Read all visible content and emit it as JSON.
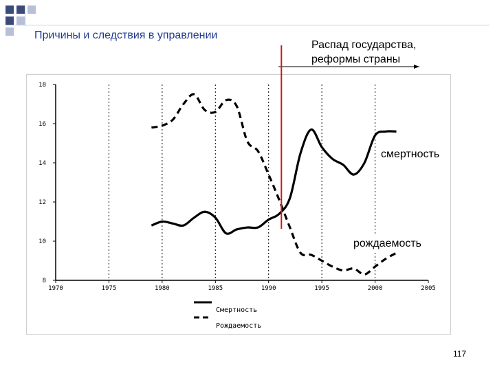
{
  "slide": {
    "title": "Причины и следствия в управлении",
    "annotation_line1": "Распад государства,",
    "annotation_line2": "реформы страны",
    "page_number": "117"
  },
  "chart_data": {
    "type": "line",
    "xlim": [
      1970,
      2005
    ],
    "ylim": [
      8,
      18
    ],
    "x_ticks": [
      1970,
      1975,
      1980,
      1985,
      1990,
      1995,
      2000,
      2005
    ],
    "y_ticks": [
      8,
      10,
      12,
      14,
      16,
      18
    ],
    "vertical_dotted_lines": [
      1975,
      1980,
      1985,
      1990,
      1995,
      2000
    ],
    "marker_year": 1991.2,
    "series": [
      {
        "name": "Смертность",
        "inline_label": "смертность",
        "style": "solid",
        "x": [
          1979,
          1980,
          1981,
          1982,
          1983,
          1984,
          1985,
          1986,
          1987,
          1988,
          1989,
          1990,
          1991,
          1992,
          1993,
          1994,
          1995,
          1996,
          1997,
          1998,
          1999,
          2000,
          2001,
          2002
        ],
        "values": [
          10.8,
          11.0,
          10.9,
          10.8,
          11.2,
          11.5,
          11.2,
          10.4,
          10.6,
          10.7,
          10.7,
          11.1,
          11.4,
          12.2,
          14.5,
          15.7,
          14.8,
          14.2,
          13.9,
          13.4,
          14.0,
          15.4,
          15.6,
          15.6
        ]
      },
      {
        "name": "Рождаемость",
        "inline_label": "рождаемость",
        "style": "dashed",
        "x": [
          1979,
          1980,
          1981,
          1982,
          1983,
          1984,
          1985,
          1986,
          1987,
          1988,
          1989,
          1990,
          1991,
          1992,
          1993,
          1994,
          1995,
          1996,
          1997,
          1998,
          1999,
          2000,
          2001,
          2002
        ],
        "values": [
          15.8,
          15.9,
          16.2,
          17.0,
          17.5,
          16.7,
          16.6,
          17.2,
          16.9,
          15.1,
          14.6,
          13.4,
          12.1,
          10.7,
          9.4,
          9.3,
          9.0,
          8.7,
          8.5,
          8.6,
          8.3,
          8.7,
          9.1,
          9.4
        ]
      }
    ]
  }
}
